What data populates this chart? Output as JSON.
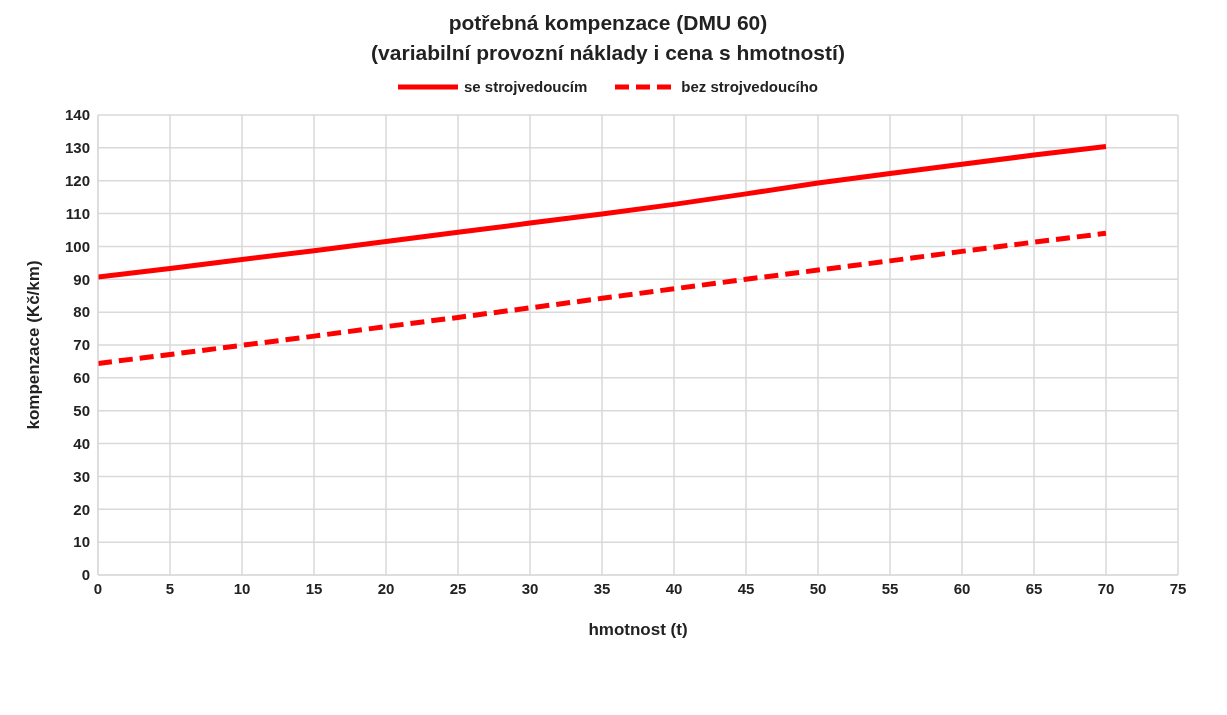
{
  "chart_data": {
    "type": "line",
    "title": "potřebná kompenzace (DMU 60)",
    "subtitle": "(variabilní provozní náklady i cena s hmotností)",
    "xlabel": "hmotnost (t)",
    "ylabel": "kompenzace (Kč/km)",
    "x": [
      0,
      5,
      10,
      15,
      20,
      25,
      30,
      35,
      40,
      45,
      50,
      55,
      60,
      65,
      70
    ],
    "series": [
      {
        "name": "se strojvedoucím",
        "color": "#ff0000",
        "line_style": "solid",
        "values": [
          90.7,
          93.3,
          96.0,
          98.7,
          101.5,
          104.3,
          107.1,
          109.9,
          112.8,
          116.0,
          119.3,
          122.2,
          125.0,
          127.8,
          130.4
        ]
      },
      {
        "name": "bez strojvedoucího",
        "color": "#ff0000",
        "line_style": "dashed",
        "values": [
          64.4,
          67.1,
          69.9,
          72.7,
          75.6,
          78.4,
          81.3,
          84.2,
          87.1,
          90.0,
          92.8,
          95.6,
          98.5,
          101.3,
          104.0
        ]
      }
    ],
    "xlim": [
      0,
      75
    ],
    "xticks": [
      0,
      5,
      10,
      15,
      20,
      25,
      30,
      35,
      40,
      45,
      50,
      55,
      60,
      65,
      70,
      75
    ],
    "ylim": [
      0,
      140
    ],
    "yticks": [
      0,
      10,
      20,
      30,
      40,
      50,
      60,
      70,
      80,
      90,
      100,
      110,
      120,
      130,
      140
    ],
    "grid": true,
    "legend": "top",
    "marker": "none"
  }
}
